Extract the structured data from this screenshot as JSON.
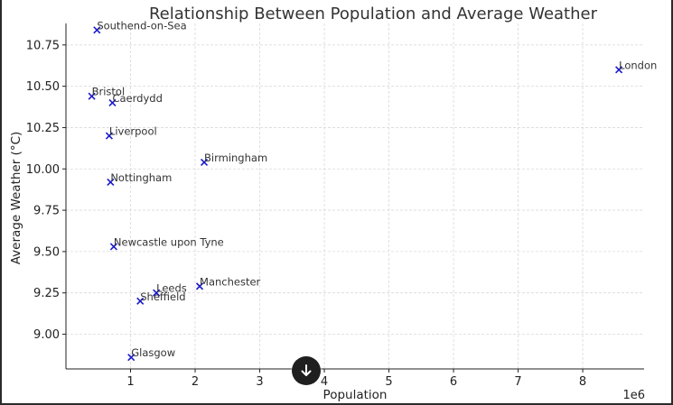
{
  "chart_data": {
    "type": "scatter",
    "title": "Relationship Between Population and Average Weather",
    "xlabel": "Population",
    "ylabel": "Average Weather (°C)",
    "x_offset_label": "1e6",
    "xlim": [
      0,
      8.95
    ],
    "ylim": [
      8.79,
      10.88
    ],
    "x_ticks": [
      1,
      2,
      3,
      4,
      5,
      6,
      7,
      8
    ],
    "y_ticks": [
      "9.00",
      "9.25",
      "9.50",
      "9.75",
      "10.00",
      "10.25",
      "10.50",
      "10.75"
    ],
    "grid": true,
    "marker": "x",
    "color": "#1a1acc",
    "points": [
      {
        "label": "Southend-on-Sea",
        "x": 0.48,
        "y": 10.84
      },
      {
        "label": "London",
        "x": 8.56,
        "y": 10.6
      },
      {
        "label": "Bristol",
        "x": 0.4,
        "y": 10.44
      },
      {
        "label": "Caerdydd",
        "x": 0.72,
        "y": 10.4
      },
      {
        "label": "Liverpool",
        "x": 0.67,
        "y": 10.2
      },
      {
        "label": "Birmingham",
        "x": 2.14,
        "y": 10.04
      },
      {
        "label": "Nottingham",
        "x": 0.69,
        "y": 9.92
      },
      {
        "label": "Newcastle upon Tyne",
        "x": 0.74,
        "y": 9.53
      },
      {
        "label": "Manchester",
        "x": 2.07,
        "y": 9.29
      },
      {
        "label": "Leeds",
        "x": 1.4,
        "y": 9.25
      },
      {
        "label": "Sheffield",
        "x": 1.15,
        "y": 9.2
      },
      {
        "label": "Glasgow",
        "x": 1.01,
        "y": 8.86
      }
    ]
  },
  "ui": {
    "scroll_icon": "arrow-down-icon"
  }
}
